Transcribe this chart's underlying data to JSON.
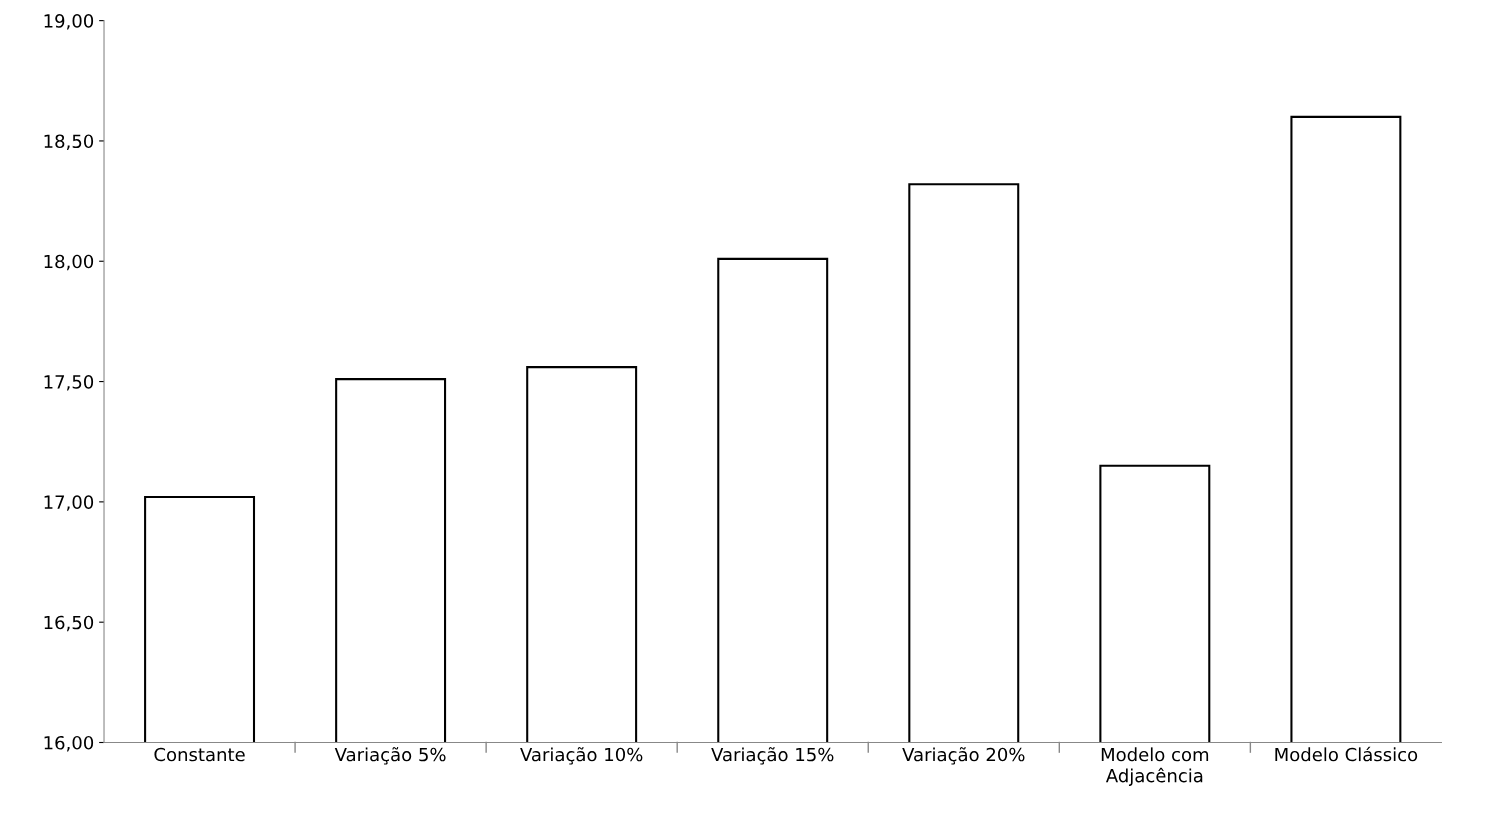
{
  "chart_data": {
    "type": "bar",
    "categories": [
      "Constante",
      "Variação 5%",
      "Variação 10%",
      "Variação 15%",
      "Variação 20%",
      "Modelo com\nAdjacência",
      "Modelo Clássico"
    ],
    "values": [
      17.02,
      17.51,
      17.56,
      18.01,
      18.32,
      17.15,
      18.6
    ],
    "color": "#ffffff",
    "ylim": [
      16,
      19
    ],
    "yticks": [
      {
        "value": 16,
        "label": "16,00"
      },
      {
        "value": 16.5,
        "label": "16,50"
      },
      {
        "value": 17,
        "label": "17,00"
      },
      {
        "value": 17.5,
        "label": "17,50"
      },
      {
        "value": 18,
        "label": "18,00"
      },
      {
        "value": 18.5,
        "label": "18,50"
      },
      {
        "value": 19,
        "label": "19,00"
      }
    ],
    "grid": false,
    "legend": false
  }
}
